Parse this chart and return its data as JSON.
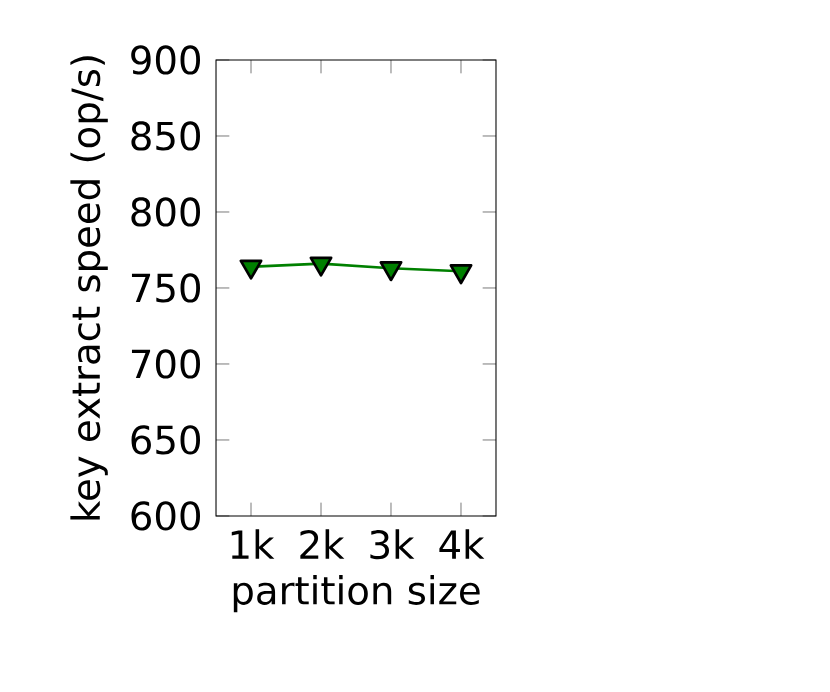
{
  "chart_data": {
    "type": "line",
    "xlabel": "partition size",
    "ylabel": "key extract speed (op/s)",
    "categories": [
      "1k",
      "2k",
      "3k",
      "4k"
    ],
    "series": [
      {
        "color": "#008000",
        "values": [
          764,
          766,
          763,
          761
        ]
      }
    ],
    "ylim": [
      600,
      900
    ],
    "yticks": [
      600,
      650,
      700,
      750,
      800,
      850,
      900
    ],
    "marker": "triangle",
    "line_style": "solid"
  }
}
